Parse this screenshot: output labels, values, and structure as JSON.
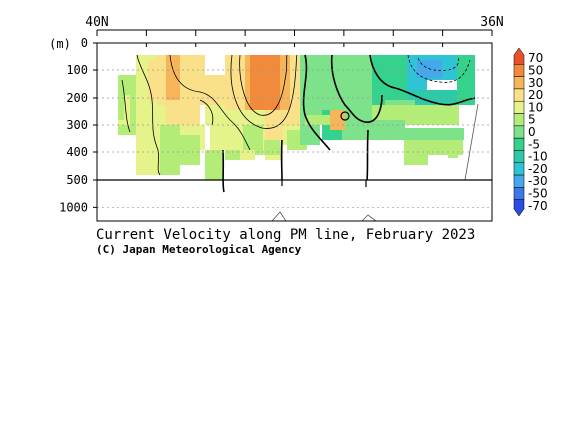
{
  "chart_data": {
    "type": "heatmap",
    "title": "Current Velocity along PM line, February 2023",
    "credit": "(C) Japan Meteorological Agency",
    "x_axis": {
      "left_label": "40N",
      "right_label": "36N",
      "ticks_count": 8
    },
    "y_axis": {
      "unit_label": "(m)",
      "upper_ticks": [
        "0",
        "100",
        "200",
        "300",
        "400",
        "500"
      ],
      "upper_range": [
        0,
        500
      ],
      "lower_ticks": [
        "1000"
      ],
      "lower_range": [
        500,
        1250
      ]
    },
    "grid": "dashed",
    "colorbar": {
      "labels": [
        "70",
        "50",
        "30",
        "20",
        "10",
        "5",
        "0",
        "-5",
        "-10",
        "-20",
        "-30",
        "-50",
        "-70"
      ],
      "colors": [
        "#e8502a",
        "#f28a3c",
        "#f7b55a",
        "#fbe08a",
        "#e6f28a",
        "#b4ec78",
        "#7ee28a",
        "#34d28c",
        "#2ccaa8",
        "#2ec4d6",
        "#44a8ee",
        "#3c78e8",
        "#2a4ce0"
      ],
      "orientation": "vertical",
      "placement": "right"
    }
  }
}
